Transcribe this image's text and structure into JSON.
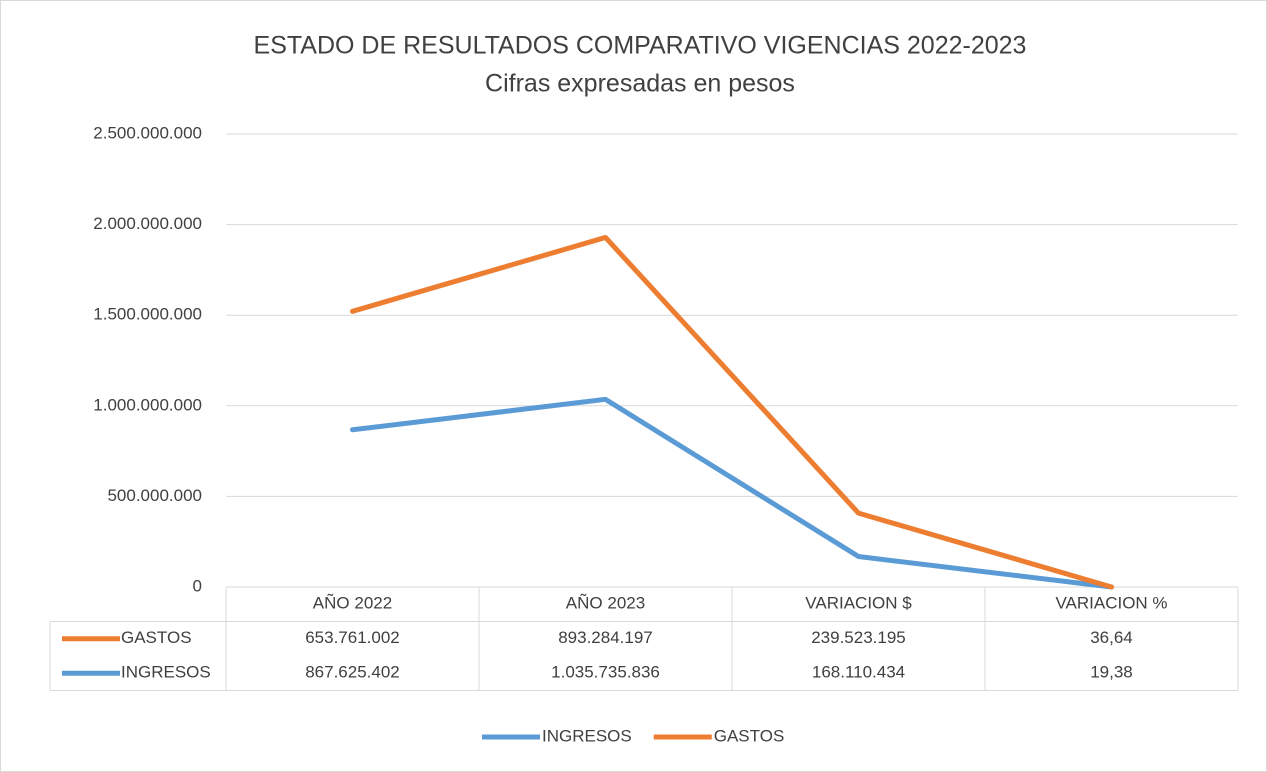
{
  "chart_data": {
    "type": "line",
    "stacked": true,
    "title": "ESTADO DE RESULTADOS COMPARATIVO VIGENCIAS 2022-2023",
    "subtitle": "Cifras expresadas en pesos",
    "categories": [
      "AÑO 2022",
      "AÑO 2023",
      "VARIACION $",
      "VARIACION %"
    ],
    "series": [
      {
        "name": "INGRESOS",
        "color": "#5b9bd5",
        "values": [
          867625402,
          1035735836,
          168110434,
          19.38
        ],
        "value_labels": [
          "867.625.402",
          "1.035.735.836",
          "168.110.434",
          "19,38"
        ]
      },
      {
        "name": "GASTOS",
        "color": "#ed7d31",
        "values": [
          653761002,
          893284197,
          239523195,
          36.64
        ],
        "value_labels": [
          "653.761.002",
          "893.284.197",
          "239.523.195",
          "36,64"
        ]
      }
    ],
    "ylim": [
      0,
      2500000000
    ],
    "yticks": [
      0,
      {
        "value": 500000000,
        "label": "500.000.000"
      },
      {
        "value": 1000000000,
        "label": "1.000.000.000"
      },
      {
        "value": 1500000000,
        "label": "1.500.000.000"
      },
      {
        "value": 2000000000,
        "label": "2.000.000.000"
      },
      {
        "value": 2500000000,
        "label": "2.500.000.000"
      }
    ],
    "grid": true,
    "legend": "bottom",
    "data_table": true
  }
}
